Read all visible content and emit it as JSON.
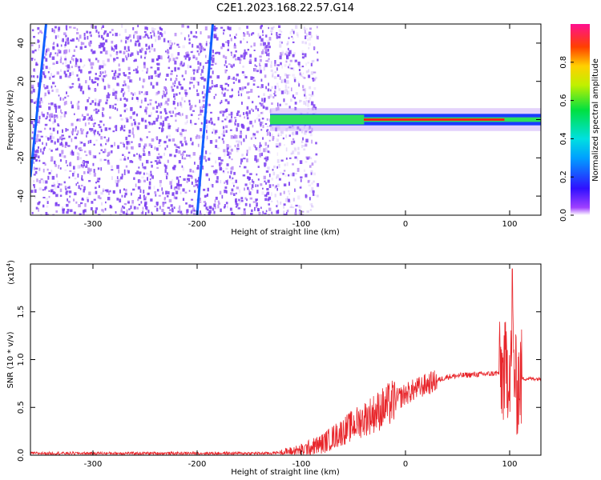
{
  "title": "C2E1.2023.168.22.57.G14",
  "chart_data": [
    {
      "type": "heatmap",
      "xlabel": "Height of straight line (km)",
      "ylabel": "Frequency (Hz)",
      "xlim": [
        -360,
        130
      ],
      "ylim": [
        -50,
        50
      ],
      "xticks": [
        -300,
        -200,
        -100,
        0,
        100
      ],
      "yticks": [
        -40,
        -20,
        0,
        20,
        40
      ],
      "colorbar": {
        "label": "Normalized spectral amplitude",
        "range": [
          0.0,
          1.0
        ],
        "ticks": [
          "0.0",
          "0.2",
          "0.4",
          "0.6",
          "0.8"
        ]
      },
      "features": {
        "noise_region_x": [
          -360,
          -95
        ],
        "signal_line": {
          "x": [
            -130,
            130
          ],
          "y": 0,
          "peak_amplitude": 0.9
        },
        "chirp_streaks": [
          {
            "x": [
              -360,
              -345
            ],
            "y": [
              -30,
              50
            ]
          },
          {
            "x": [
              -200,
              -185
            ],
            "y": [
              -50,
              50
            ]
          }
        ]
      }
    },
    {
      "type": "line",
      "xlabel": "Height of straight line (km)",
      "ylabel": "SNR (10 * v/v)",
      "yscale_label": "(x10",
      "yscale_exp": "4",
      "yscale_close": ")",
      "xlim": [
        -360,
        130
      ],
      "ylim": [
        0,
        2.0
      ],
      "xticks": [
        -300,
        -200,
        -100,
        0,
        100
      ],
      "yticks": [
        "0.0",
        "0.5",
        "1.0",
        "1.5"
      ],
      "series_color": "#e8262b",
      "x": [
        -360,
        -300,
        -200,
        -130,
        -110,
        -100,
        -80,
        -60,
        -40,
        -20,
        0,
        20,
        40,
        60,
        80,
        90,
        95,
        100,
        103,
        106,
        110,
        120,
        130
      ],
      "y": [
        0.02,
        0.02,
        0.02,
        0.02,
        0.04,
        0.05,
        0.12,
        0.25,
        0.38,
        0.5,
        0.64,
        0.74,
        0.82,
        0.84,
        0.85,
        0.86,
        0.85,
        0.95,
        1.2,
        0.7,
        0.8,
        0.8,
        0.8
      ]
    }
  ],
  "colors": {
    "noise": "#7a3cf0",
    "signal_low": "#1b3cff",
    "signal_mid": "#2ee05c",
    "signal_high": "#ff1a1a",
    "line": "#e8262b"
  }
}
